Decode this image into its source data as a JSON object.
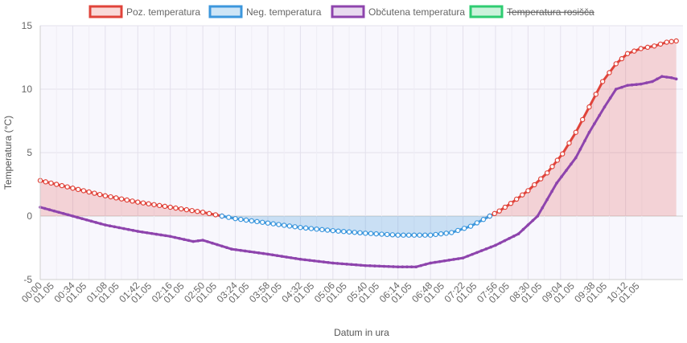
{
  "chart_data": {
    "type": "line",
    "xlabel": "Datum in ura",
    "ylabel": "Temperatura (°C)",
    "ylim": [
      -5,
      15
    ],
    "yticks": [
      -5,
      0,
      5,
      10,
      15
    ],
    "grid": true,
    "legend_placement": "top-center",
    "x_tick_labels": [
      [
        "00:00",
        "01.05"
      ],
      [
        "00:34",
        "01.05"
      ],
      [
        "01:08",
        "01.05"
      ],
      [
        "01:42",
        "01.05"
      ],
      [
        "02:16",
        "01.05"
      ],
      [
        "02:50",
        "01.05"
      ],
      [
        "03:24",
        "01.05"
      ],
      [
        "03:58",
        "01.05"
      ],
      [
        "04:32",
        "01.05"
      ],
      [
        "05:06",
        "01.05"
      ],
      [
        "05:40",
        "01.05"
      ],
      [
        "06:14",
        "01.05"
      ],
      [
        "06:48",
        "01.05"
      ],
      [
        "07:22",
        "01.05"
      ],
      [
        "07:56",
        "01.05"
      ],
      [
        "08:30",
        "01.05"
      ],
      [
        "09:04",
        "01.05"
      ],
      [
        "09:38",
        "01.05"
      ],
      [
        "10:12",
        "01.05"
      ]
    ],
    "x_minutes_domain": [
      0,
      672
    ],
    "series": [
      {
        "name": "Poz. temperatura",
        "color": "#e0433a",
        "fill": "rgba(224,67,58,0.20)",
        "hidden": false,
        "points": [
          [
            0,
            2.8
          ],
          [
            34,
            2.2
          ],
          [
            68,
            1.6
          ],
          [
            102,
            1.1
          ],
          [
            136,
            0.7
          ],
          [
            170,
            0.3
          ],
          [
            190,
            0.0
          ],
          [
            470,
            0.0
          ],
          [
            480,
            0.4
          ],
          [
            492,
            1.0
          ],
          [
            510,
            2.0
          ],
          [
            530,
            3.4
          ],
          [
            546,
            4.9
          ],
          [
            560,
            6.6
          ],
          [
            574,
            8.6
          ],
          [
            588,
            10.6
          ],
          [
            602,
            12.0
          ],
          [
            614,
            12.8
          ],
          [
            628,
            13.2
          ],
          [
            642,
            13.4
          ],
          [
            655,
            13.7
          ],
          [
            665,
            13.8
          ]
        ]
      },
      {
        "name": "Neg. temperatura",
        "color": "#3c97dd",
        "fill": "rgba(60,151,221,0.25)",
        "hidden": false,
        "points": [
          [
            190,
            0.0
          ],
          [
            204,
            -0.2
          ],
          [
            238,
            -0.55
          ],
          [
            272,
            -0.9
          ],
          [
            306,
            -1.15
          ],
          [
            340,
            -1.35
          ],
          [
            374,
            -1.5
          ],
          [
            408,
            -1.5
          ],
          [
            430,
            -1.3
          ],
          [
            450,
            -0.8
          ],
          [
            470,
            0.0
          ]
        ]
      },
      {
        "name": "Občutena temperatura",
        "color": "#8e44ad",
        "fill": "rgba(142,68,173,0.0)",
        "hidden": false,
        "points": [
          [
            0,
            0.7
          ],
          [
            34,
            0.0
          ],
          [
            68,
            -0.7
          ],
          [
            102,
            -1.2
          ],
          [
            136,
            -1.6
          ],
          [
            160,
            -2.0
          ],
          [
            170,
            -1.9
          ],
          [
            200,
            -2.6
          ],
          [
            238,
            -3.0
          ],
          [
            272,
            -3.4
          ],
          [
            306,
            -3.7
          ],
          [
            340,
            -3.9
          ],
          [
            374,
            -4.0
          ],
          [
            393,
            -4.0
          ],
          [
            408,
            -3.7
          ],
          [
            442,
            -3.3
          ],
          [
            476,
            -2.3
          ],
          [
            500,
            -1.4
          ],
          [
            520,
            0.0
          ],
          [
            540,
            2.6
          ],
          [
            560,
            4.6
          ],
          [
            574,
            6.6
          ],
          [
            590,
            8.6
          ],
          [
            602,
            10.0
          ],
          [
            614,
            10.3
          ],
          [
            628,
            10.4
          ],
          [
            640,
            10.6
          ],
          [
            650,
            11.0
          ],
          [
            660,
            10.9
          ],
          [
            665,
            10.8
          ]
        ]
      },
      {
        "name": "Temperatura rosišča",
        "color": "#2ecc71",
        "fill": "rgba(46,204,113,0.25)",
        "hidden": true,
        "points": []
      }
    ]
  }
}
